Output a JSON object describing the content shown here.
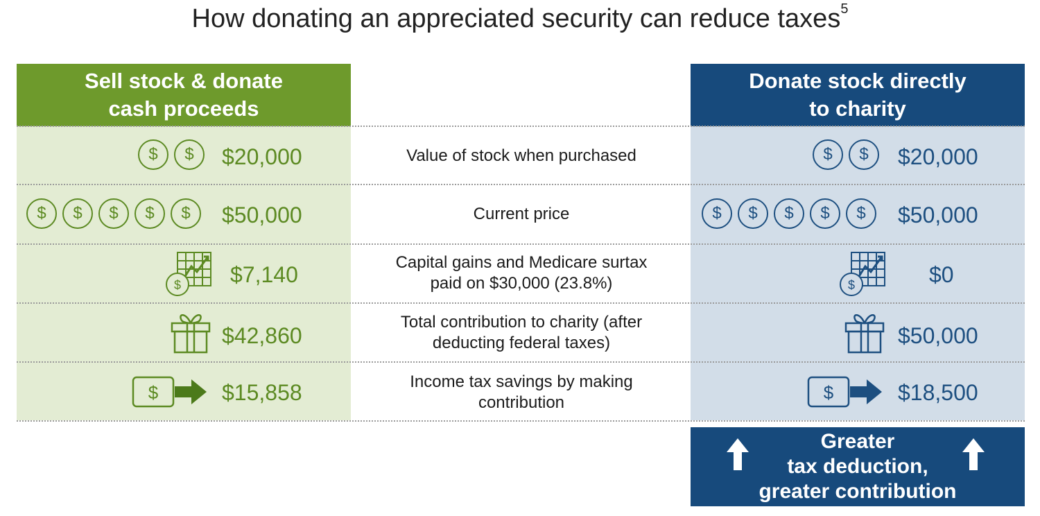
{
  "title": "How donating an appreciated security can reduce taxes",
  "title_footnote": "5",
  "left_header": {
    "line1": "Sell stock & donate",
    "line2": "cash proceeds"
  },
  "right_header": {
    "line1": "Donate stock directly",
    "line2": "to charity"
  },
  "rows": [
    {
      "label1": "Value of stock when purchased",
      "label2": "",
      "left_value": "$20,000",
      "right_value": "$20,000",
      "icon": "two-coins-icon"
    },
    {
      "label1": "Current price",
      "label2": "",
      "left_value": "$50,000",
      "right_value": "$50,000",
      "icon": "five-coins-icon"
    },
    {
      "label1": "Capital gains and Medicare surtax",
      "label2": "paid on $30,000 (23.8%)",
      "left_value": "$7,140",
      "right_value": "$0",
      "icon": "chart-coin-icon"
    },
    {
      "label1": "Total contribution to charity (after",
      "label2": "deducting federal taxes)",
      "left_value": "$42,860",
      "right_value": "$50,000",
      "icon": "gift-icon"
    },
    {
      "label1": "Income tax savings by making",
      "label2": "contribution",
      "left_value": "$15,858",
      "right_value": "$18,500",
      "icon": "cash-arrow-icon"
    }
  ],
  "coin_symbol": "$",
  "footer": {
    "line1": "Greater",
    "line2": "tax deduction,",
    "line3": "greater contribution"
  },
  "colors": {
    "green_header": "#6e9a2c",
    "green_bg": "#e3ecd3",
    "green_text": "#5c8a22",
    "blue_header": "#174a7c",
    "blue_bg": "#d2dde8",
    "blue_text": "#1d4f80"
  }
}
